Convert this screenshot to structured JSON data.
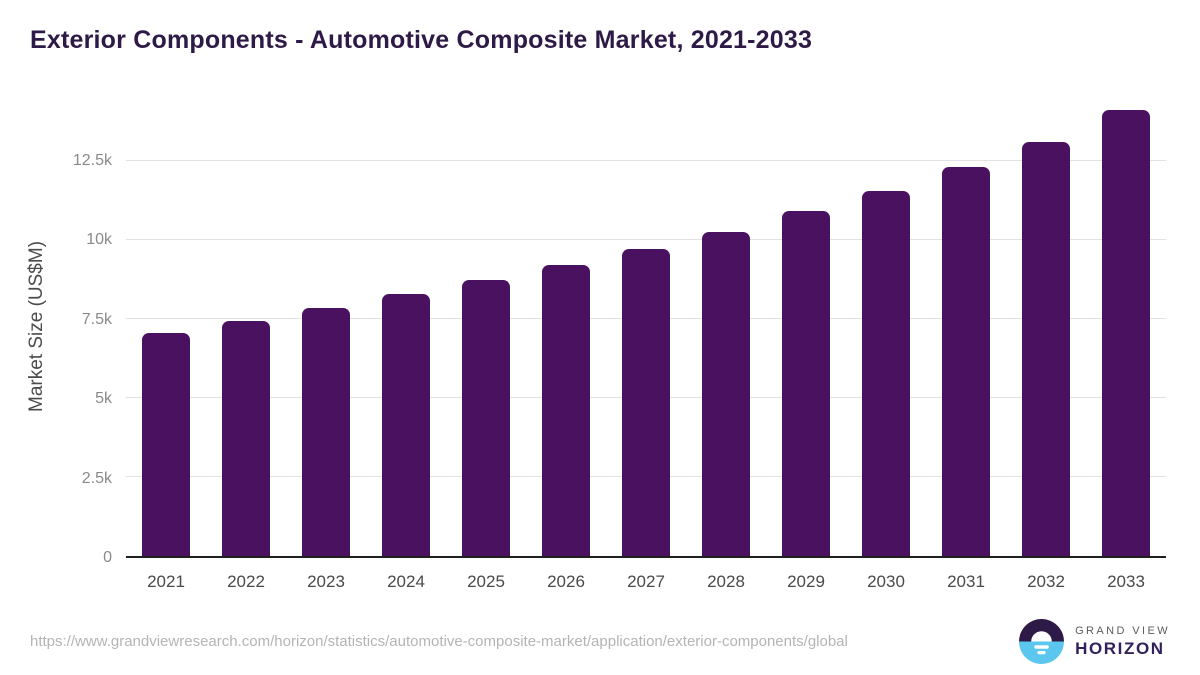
{
  "title": "Exterior Components - Automotive Composite Market, 2021-2033",
  "source_url": "https://www.grandviewresearch.com/horizon/statistics/automotive-composite-market/application/exterior-components/global",
  "logo": {
    "top_text": "GRAND VIEW",
    "bottom_text": "HORIZON"
  },
  "colors": {
    "bar": "#4A1161",
    "title_text": "#2E1A47",
    "grid": "#e2e2e2",
    "baseline": "#1f1f1f",
    "y_tick_text": "#8a8a8a",
    "x_tick_text": "#4a4a4a",
    "axis_title_text": "#4b4b4b",
    "url_text": "#b4b4b4",
    "logo_purple": "#2E1A47",
    "logo_blue": "#5BC6EE",
    "logo_wordmark_purple": "#33205C",
    "logo_wordmark_gray": "#5c5c5c"
  },
  "chart_data": {
    "type": "bar",
    "title": "Exterior Components - Automotive Composite Market, 2021-2033",
    "categories": [
      "2021",
      "2022",
      "2023",
      "2024",
      "2025",
      "2026",
      "2027",
      "2028",
      "2029",
      "2030",
      "2031",
      "2032",
      "2033"
    ],
    "values": [
      7050,
      7430,
      7840,
      8280,
      8720,
      9200,
      9700,
      10250,
      10900,
      11550,
      12300,
      13100,
      14100
    ],
    "xlabel": "",
    "ylabel": "Market Size (US$M)",
    "ylim": [
      0,
      14580
    ],
    "yticks": [
      {
        "label": "0",
        "value": 0
      },
      {
        "label": "2.5k",
        "value": 2500
      },
      {
        "label": "5k",
        "value": 5000
      },
      {
        "label": "7.5k",
        "value": 7500
      },
      {
        "label": "10k",
        "value": 10000
      },
      {
        "label": "12.5k",
        "value": 12500
      }
    ],
    "grid": true,
    "legend": false
  }
}
